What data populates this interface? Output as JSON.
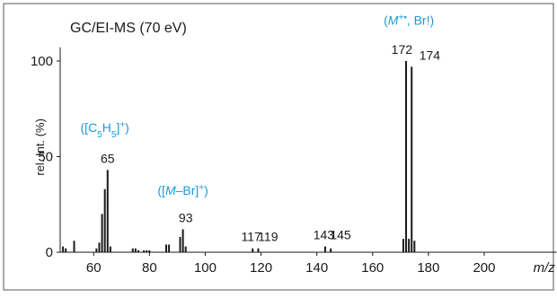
{
  "chart_data": {
    "type": "bar",
    "title": "GC/EI-MS (70 eV)",
    "xlabel": "m/z",
    "ylabel": "rel. Int. (%)",
    "xlim": [
      48,
      226
    ],
    "ylim": [
      0,
      110
    ],
    "x_ticks": [
      60,
      80,
      100,
      120,
      140,
      160,
      180,
      200
    ],
    "y_ticks": [
      0,
      50,
      100
    ],
    "peaks": [
      {
        "mz": 49,
        "intensity": 3
      },
      {
        "mz": 50,
        "intensity": 2
      },
      {
        "mz": 53,
        "intensity": 6
      },
      {
        "mz": 61,
        "intensity": 2
      },
      {
        "mz": 62,
        "intensity": 5
      },
      {
        "mz": 63,
        "intensity": 20
      },
      {
        "mz": 64,
        "intensity": 33
      },
      {
        "mz": 65,
        "intensity": 43
      },
      {
        "mz": 66,
        "intensity": 3
      },
      {
        "mz": 74,
        "intensity": 2
      },
      {
        "mz": 75,
        "intensity": 2
      },
      {
        "mz": 76,
        "intensity": 1
      },
      {
        "mz": 78,
        "intensity": 1
      },
      {
        "mz": 79,
        "intensity": 1
      },
      {
        "mz": 80,
        "intensity": 1
      },
      {
        "mz": 86,
        "intensity": 4
      },
      {
        "mz": 87,
        "intensity": 4
      },
      {
        "mz": 91,
        "intensity": 8
      },
      {
        "mz": 92,
        "intensity": 12
      },
      {
        "mz": 93,
        "intensity": 3
      },
      {
        "mz": 117,
        "intensity": 2
      },
      {
        "mz": 119,
        "intensity": 2
      },
      {
        "mz": 143,
        "intensity": 3
      },
      {
        "mz": 145,
        "intensity": 2
      },
      {
        "mz": 171,
        "intensity": 7
      },
      {
        "mz": 172,
        "intensity": 100
      },
      {
        "mz": 173,
        "intensity": 7
      },
      {
        "mz": 174,
        "intensity": 97
      },
      {
        "mz": 175,
        "intensity": 6
      }
    ],
    "peak_labels": [
      {
        "text": "65",
        "mz": 65,
        "above": 43
      },
      {
        "text": "93",
        "mz": 93,
        "above": 12
      },
      {
        "text": "117",
        "mz": 116.5,
        "above": 2
      },
      {
        "text": "119",
        "mz": 122.5,
        "above": 2
      },
      {
        "text": "143",
        "mz": 142.5,
        "above": 3
      },
      {
        "text": "145",
        "mz": 148.5,
        "above": 3
      },
      {
        "text": "172",
        "mz": 170.5,
        "above": 100
      },
      {
        "text": "174",
        "mz": 180.5,
        "above": 97
      }
    ],
    "annotations": [
      {
        "parts": [
          {
            "t": "([C"
          },
          {
            "t": "5",
            "sub": true
          },
          {
            "t": "H"
          },
          {
            "t": "5",
            "sub": true
          },
          {
            "t": "]"
          },
          {
            "t": "+",
            "sup": true
          },
          {
            "t": ")"
          }
        ],
        "mz": 64,
        "above": 63
      },
      {
        "parts": [
          {
            "t": "(["
          },
          {
            "t": "M",
            "italic": true
          },
          {
            "t": "–Br]"
          },
          {
            "t": "+",
            "sup": true
          },
          {
            "t": ")"
          }
        ],
        "mz": 92,
        "above": 30
      },
      {
        "parts": [
          {
            "t": "("
          },
          {
            "t": "M",
            "italic": true
          },
          {
            "t": "+•",
            "sup": true,
            "italic": true
          },
          {
            "t": ", Br!)"
          }
        ],
        "mz": 173,
        "above": 119
      }
    ],
    "colors": {
      "bars": "#1a1a1a",
      "annotation": "#1d9ad6",
      "frame": "#555555"
    }
  }
}
